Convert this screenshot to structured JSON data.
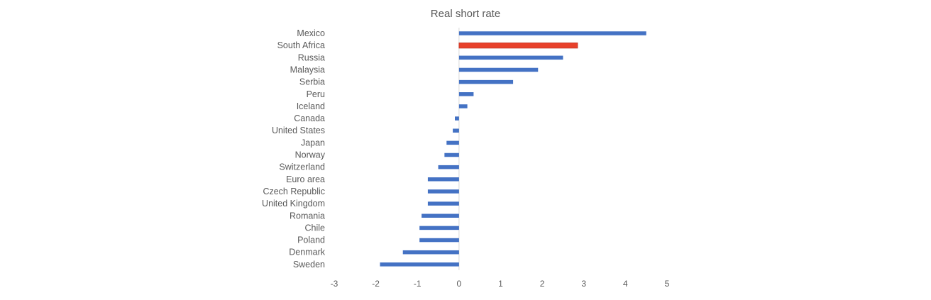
{
  "chart_data": {
    "type": "bar",
    "orientation": "horizontal",
    "title": "Real short rate",
    "xlabel": "",
    "ylabel": "",
    "xlim": [
      -3,
      5
    ],
    "x_ticks": [
      "-3",
      "-2",
      "-1",
      "0",
      "1",
      "2",
      "3",
      "4",
      "5"
    ],
    "grid": false,
    "legend": "none",
    "colors": {
      "default": "#4472C4",
      "highlight": "#E8412B",
      "highlight_edge": "#C0392B"
    },
    "highlight_category": "South Africa",
    "categories": [
      "Mexico",
      "South Africa",
      "Russia",
      "Malaysia",
      "Serbia",
      "Peru",
      "Iceland",
      "Canada",
      "United States",
      "Japan",
      "Norway",
      "Switzerland",
      "Euro area",
      "Czech Republic",
      "United Kingdom",
      "Romania",
      "Chile",
      "Poland",
      "Denmark",
      "Sweden"
    ],
    "values": [
      4.5,
      2.85,
      2.5,
      1.9,
      1.3,
      0.35,
      0.2,
      -0.1,
      -0.15,
      -0.3,
      -0.35,
      -0.5,
      -0.75,
      -0.75,
      -0.75,
      -0.9,
      -0.95,
      -0.95,
      -1.35,
      -1.9
    ]
  }
}
